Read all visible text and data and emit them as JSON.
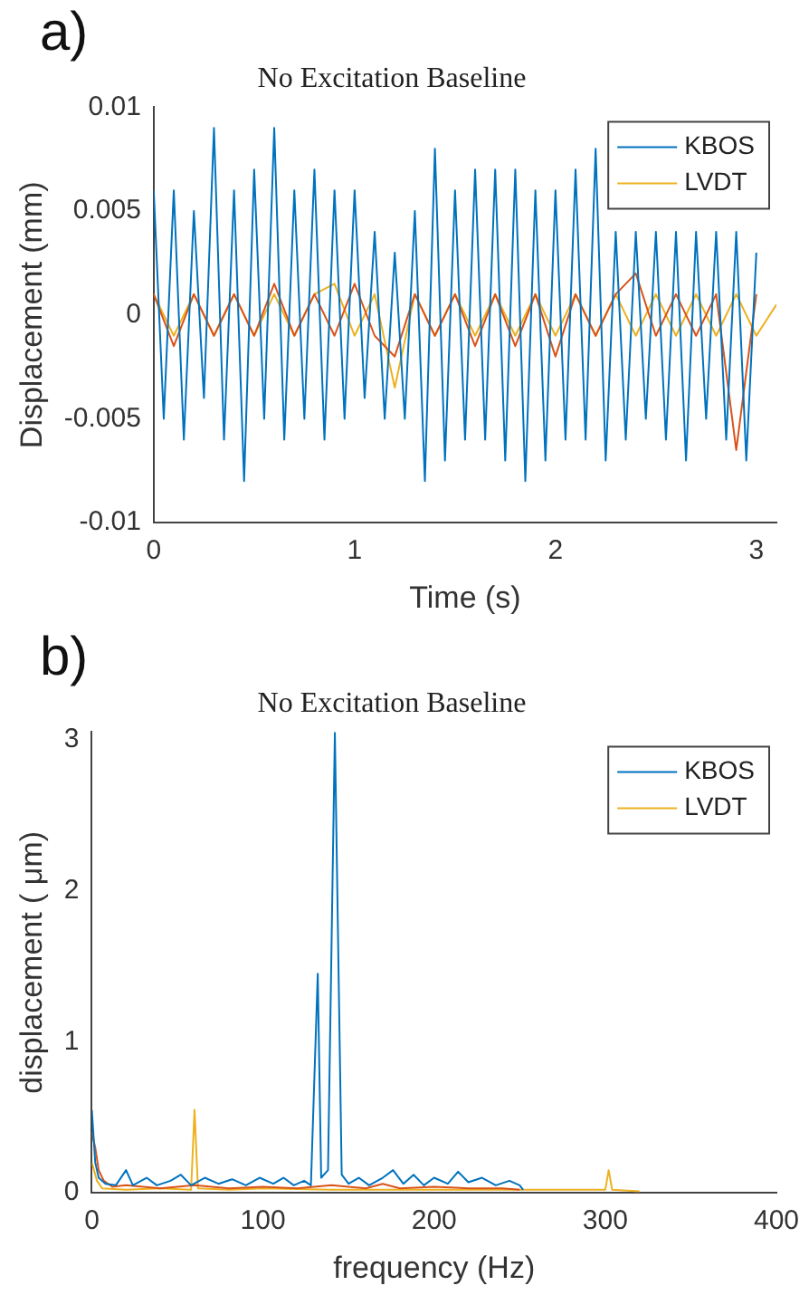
{
  "chart_data": [
    {
      "type": "line",
      "title": "No Excitation Baseline",
      "xlabel": "Time (s)",
      "ylabel": "Displacement (mm)",
      "annotations": [
        "a)"
      ],
      "xlim": [
        0,
        3.1
      ],
      "xticks": [
        0,
        1,
        2,
        3
      ],
      "ylim": [
        -0.01,
        0.01
      ],
      "yticks": [
        -0.01,
        -0.005,
        0,
        0.005,
        0.01
      ],
      "grid": false,
      "legend": "top right",
      "series": [
        {
          "name": "KBOS",
          "color": "#0072bd",
          "x": [
            0,
            0.05,
            0.1,
            0.15,
            0.2,
            0.25,
            0.3,
            0.35,
            0.4,
            0.45,
            0.5,
            0.55,
            0.6,
            0.65,
            0.7,
            0.75,
            0.8,
            0.85,
            0.9,
            0.95,
            1,
            1.05,
            1.1,
            1.15,
            1.2,
            1.25,
            1.3,
            1.35,
            1.4,
            1.45,
            1.5,
            1.55,
            1.6,
            1.65,
            1.7,
            1.75,
            1.8,
            1.85,
            1.9,
            1.95,
            2,
            2.05,
            2.1,
            2.15,
            2.2,
            2.25,
            2.3,
            2.35,
            2.4,
            2.45,
            2.5,
            2.55,
            2.6,
            2.65,
            2.7,
            2.75,
            2.8,
            2.85,
            2.9,
            2.95,
            3
          ],
          "values": [
            0.006,
            -0.005,
            0.006,
            -0.006,
            0.005,
            -0.004,
            0.009,
            -0.006,
            0.006,
            -0.008,
            0.007,
            -0.005,
            0.009,
            -0.006,
            0.006,
            -0.005,
            0.007,
            -0.006,
            0.006,
            -0.005,
            0.006,
            -0.004,
            0.004,
            -0.005,
            0.003,
            -0.005,
            0.005,
            -0.008,
            0.008,
            -0.007,
            0.006,
            -0.006,
            0.007,
            -0.006,
            0.007,
            -0.007,
            0.007,
            -0.008,
            0.006,
            -0.007,
            0.006,
            -0.006,
            0.007,
            -0.006,
            0.008,
            -0.007,
            0.004,
            -0.006,
            0.004,
            -0.005,
            0.004,
            -0.006,
            0.004,
            -0.007,
            0.004,
            -0.005,
            0.004,
            -0.006,
            0.004,
            -0.007,
            0.003
          ]
        },
        {
          "color": "#d95319",
          "x": [
            0,
            0.1,
            0.2,
            0.3,
            0.4,
            0.5,
            0.6,
            0.7,
            0.8,
            0.9,
            1,
            1.1,
            1.2,
            1.3,
            1.4,
            1.5,
            1.6,
            1.7,
            1.8,
            1.9,
            2,
            2.1,
            2.2,
            2.3,
            2.4,
            2.5,
            2.6,
            2.7,
            2.8,
            2.9,
            3
          ],
          "values": [
            0.001,
            -0.0015,
            0.001,
            -0.001,
            0.001,
            -0.001,
            0.0015,
            -0.001,
            0.001,
            -0.001,
            0.0015,
            -0.001,
            -0.002,
            0.001,
            -0.001,
            0.001,
            -0.0015,
            0.001,
            -0.0015,
            0.001,
            -0.002,
            0.001,
            -0.001,
            0.001,
            0.002,
            -0.001,
            0.001,
            -0.001,
            0.001,
            -0.0065,
            0.001
          ]
        },
        {
          "name": "LVDT",
          "color": "#edb120",
          "x": [
            0,
            0.1,
            0.2,
            0.3,
            0.4,
            0.5,
            0.6,
            0.7,
            0.8,
            0.9,
            1,
            1.1,
            1.2,
            1.3,
            1.4,
            1.5,
            1.6,
            1.7,
            1.8,
            1.9,
            2,
            2.1,
            2.2,
            2.3,
            2.4,
            2.5,
            2.6,
            2.7,
            2.8,
            2.9,
            3,
            3.1
          ],
          "values": [
            0.001,
            -0.001,
            0.001,
            -0.001,
            0.001,
            -0.001,
            0.001,
            -0.001,
            0.001,
            0.0015,
            -0.001,
            0.001,
            -0.0035,
            0.001,
            -0.001,
            0.001,
            -0.001,
            0.001,
            -0.001,
            0.001,
            -0.001,
            0.001,
            -0.001,
            0.001,
            -0.001,
            0.001,
            -0.001,
            0.001,
            -0.001,
            0.001,
            -0.001,
            0.0005
          ]
        }
      ]
    },
    {
      "type": "line",
      "title": "No Excitation Baseline",
      "xlabel": "frequency (Hz)",
      "ylabel": "displacement ( μm)",
      "annotations": [
        "b)"
      ],
      "xlim": [
        0,
        400
      ],
      "xticks": [
        0,
        100,
        200,
        300,
        400
      ],
      "ylim": [
        0,
        3.05
      ],
      "yticks": [
        0,
        1,
        2,
        3
      ],
      "grid": false,
      "legend": "top right",
      "series": [
        {
          "name": "KBOS",
          "color": "#0072bd",
          "x": [
            0,
            2,
            4,
            8,
            14,
            20,
            24,
            32,
            38,
            46,
            52,
            58,
            66,
            74,
            82,
            90,
            98,
            106,
            112,
            118,
            124,
            128,
            132,
            134,
            138,
            142,
            146,
            150,
            156,
            162,
            170,
            176,
            182,
            188,
            194,
            200,
            208,
            214,
            220,
            228,
            236,
            244,
            250,
            252
          ],
          "values": [
            0.55,
            0.2,
            0.1,
            0.06,
            0.05,
            0.15,
            0.05,
            0.1,
            0.05,
            0.08,
            0.12,
            0.05,
            0.1,
            0.06,
            0.09,
            0.05,
            0.1,
            0.06,
            0.1,
            0.05,
            0.08,
            0.05,
            1.45,
            0.1,
            0.15,
            3.05,
            0.12,
            0.06,
            0.1,
            0.05,
            0.1,
            0.15,
            0.06,
            0.12,
            0.05,
            0.1,
            0.06,
            0.14,
            0.07,
            0.1,
            0.05,
            0.08,
            0.05,
            0.02
          ]
        },
        {
          "color": "#d95319",
          "x": [
            0,
            2,
            4,
            7,
            12,
            20,
            40,
            60,
            80,
            100,
            120,
            140,
            160,
            170,
            180,
            200,
            220,
            240,
            250
          ],
          "values": [
            0.4,
            0.3,
            0.15,
            0.08,
            0.04,
            0.05,
            0.03,
            0.05,
            0.03,
            0.04,
            0.03,
            0.05,
            0.03,
            0.06,
            0.03,
            0.04,
            0.03,
            0.03,
            0.02
          ]
        },
        {
          "name": "LVDT",
          "color": "#edb120",
          "x": [
            0,
            3,
            6,
            20,
            40,
            58,
            60,
            62,
            80,
            100,
            140,
            200,
            250,
            270,
            290,
            300,
            302,
            304,
            320
          ],
          "values": [
            0.2,
            0.08,
            0.03,
            0.02,
            0.03,
            0.02,
            0.55,
            0.03,
            0.02,
            0.03,
            0.02,
            0.02,
            0.02,
            0.02,
            0.02,
            0.02,
            0.15,
            0.02,
            0.01
          ]
        }
      ]
    }
  ]
}
